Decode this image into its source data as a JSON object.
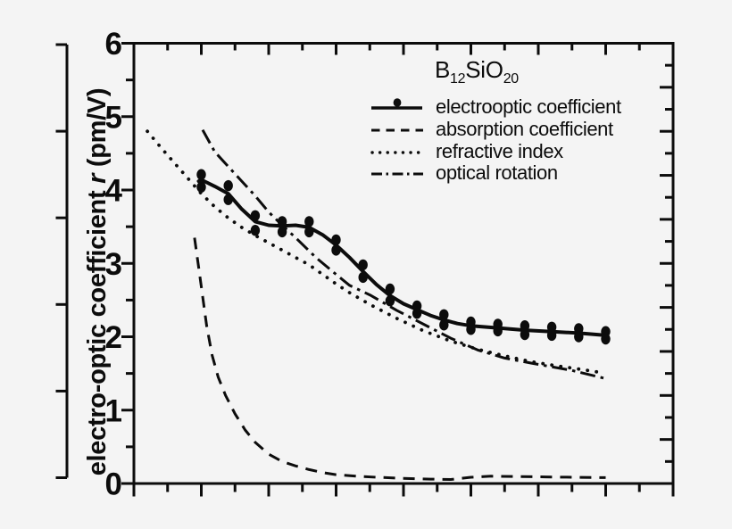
{
  "figure": {
    "background": "#f4f4f4",
    "ink": "#0c0c0c"
  },
  "chart_data": {
    "type": "line",
    "title": "B12SiO20",
    "title_parts": {
      "base1": "B",
      "sub1": "12",
      "base2": "SiO",
      "sub2": "20"
    },
    "ylabel_parts": {
      "prefix": "electro-optic coefficient ",
      "symbol": "r",
      "suffix": " (pm/V)"
    },
    "xlabel": "",
    "ylim": [
      0,
      6
    ],
    "xlim": [
      0,
      8
    ],
    "yticks": [
      0,
      1,
      2,
      3,
      4,
      5,
      6
    ],
    "y_minor_step": 0.5,
    "x_major_step": 1,
    "x_minor_step": 0.5,
    "x_tick_labels_visible": false,
    "right_axis": {
      "divisions": 10,
      "minor_per_major": 2,
      "labels_visible": false
    },
    "outer_left_axis": {
      "tick_count": 6
    },
    "grid": false,
    "legend_position": "top-right-inside",
    "legend": {
      "entries": [
        {
          "label": "electrooptic coefficient",
          "style": "solid-dot"
        },
        {
          "label": "absorption coefficient",
          "style": "dashed"
        },
        {
          "label": "refractive index",
          "style": "dotted"
        },
        {
          "label": "optical rotation",
          "style": "dashdot"
        }
      ]
    },
    "series": [
      {
        "name": "electrooptic coefficient",
        "line_style": "solid",
        "marker": "filled-circle",
        "line": [
          [
            0.96,
            4.12
          ],
          [
            1.0,
            4.14
          ],
          [
            1.2,
            4.05
          ],
          [
            1.4,
            3.95
          ],
          [
            1.6,
            3.74
          ],
          [
            1.8,
            3.57
          ],
          [
            2.0,
            3.52
          ],
          [
            2.2,
            3.51
          ],
          [
            2.4,
            3.52
          ],
          [
            2.6,
            3.49
          ],
          [
            2.8,
            3.39
          ],
          [
            3.0,
            3.25
          ],
          [
            3.2,
            3.08
          ],
          [
            3.4,
            2.89
          ],
          [
            3.6,
            2.71
          ],
          [
            3.8,
            2.56
          ],
          [
            4.0,
            2.45
          ],
          [
            4.2,
            2.37
          ],
          [
            4.4,
            2.29
          ],
          [
            4.6,
            2.23
          ],
          [
            4.8,
            2.18
          ],
          [
            5.0,
            2.15
          ],
          [
            5.4,
            2.12
          ],
          [
            5.8,
            2.09
          ],
          [
            6.2,
            2.07
          ],
          [
            6.6,
            2.05
          ],
          [
            7.0,
            2.02
          ]
        ],
        "scatter": [
          [
            1.0,
            4.21
          ],
          [
            1.0,
            4.04
          ],
          [
            1.4,
            4.06
          ],
          [
            1.4,
            3.87
          ],
          [
            1.8,
            3.65
          ],
          [
            1.8,
            3.45
          ],
          [
            2.2,
            3.57
          ],
          [
            2.2,
            3.43
          ],
          [
            2.6,
            3.57
          ],
          [
            2.6,
            3.43
          ],
          [
            3.0,
            3.32
          ],
          [
            3.0,
            3.18
          ],
          [
            3.4,
            2.98
          ],
          [
            3.4,
            2.81
          ],
          [
            3.8,
            2.65
          ],
          [
            3.8,
            2.49
          ],
          [
            4.2,
            2.42
          ],
          [
            4.2,
            2.32
          ],
          [
            4.6,
            2.3
          ],
          [
            4.6,
            2.16
          ],
          [
            5.0,
            2.2
          ],
          [
            5.0,
            2.1
          ],
          [
            5.4,
            2.17
          ],
          [
            5.4,
            2.08
          ],
          [
            5.8,
            2.15
          ],
          [
            5.8,
            2.03
          ],
          [
            6.2,
            2.13
          ],
          [
            6.2,
            2.02
          ],
          [
            6.6,
            2.11
          ],
          [
            6.6,
            2.0
          ],
          [
            7.0,
            2.07
          ],
          [
            7.0,
            1.97
          ]
        ]
      },
      {
        "name": "absorption coefficient",
        "line_style": "dashed",
        "line": [
          [
            0.9,
            3.35
          ],
          [
            0.96,
            2.95
          ],
          [
            1.02,
            2.55
          ],
          [
            1.08,
            2.15
          ],
          [
            1.16,
            1.75
          ],
          [
            1.25,
            1.45
          ],
          [
            1.36,
            1.2
          ],
          [
            1.5,
            0.95
          ],
          [
            1.65,
            0.73
          ],
          [
            1.8,
            0.56
          ],
          [
            2.0,
            0.4
          ],
          [
            2.2,
            0.3
          ],
          [
            2.4,
            0.24
          ],
          [
            2.6,
            0.19
          ],
          [
            2.8,
            0.15
          ],
          [
            3.0,
            0.12
          ],
          [
            3.3,
            0.1
          ],
          [
            3.6,
            0.085
          ],
          [
            4.0,
            0.07
          ],
          [
            4.4,
            0.06
          ],
          [
            4.7,
            0.055
          ],
          [
            5.0,
            0.085
          ],
          [
            5.3,
            0.1
          ],
          [
            5.7,
            0.095
          ],
          [
            6.1,
            0.09
          ],
          [
            6.5,
            0.085
          ],
          [
            7.0,
            0.08
          ]
        ]
      },
      {
        "name": "refractive index",
        "line_style": "dotted",
        "line": [
          [
            0.2,
            4.8
          ],
          [
            0.4,
            4.58
          ],
          [
            0.6,
            4.37
          ],
          [
            0.8,
            4.16
          ],
          [
            1.0,
            3.95
          ],
          [
            1.2,
            3.77
          ],
          [
            1.4,
            3.62
          ],
          [
            1.6,
            3.49
          ],
          [
            1.8,
            3.38
          ],
          [
            2.0,
            3.28
          ],
          [
            2.2,
            3.18
          ],
          [
            2.4,
            3.08
          ],
          [
            2.6,
            2.98
          ],
          [
            2.8,
            2.85
          ],
          [
            3.0,
            2.72
          ],
          [
            3.2,
            2.6
          ],
          [
            3.5,
            2.44
          ],
          [
            3.9,
            2.25
          ],
          [
            4.3,
            2.08
          ],
          [
            4.7,
            1.94
          ],
          [
            5.1,
            1.83
          ],
          [
            5.5,
            1.74
          ],
          [
            5.9,
            1.66
          ],
          [
            6.3,
            1.6
          ],
          [
            6.6,
            1.56
          ],
          [
            6.95,
            1.51
          ]
        ]
      },
      {
        "name": "optical rotation",
        "line_style": "dashdot",
        "line": [
          [
            1.02,
            4.82
          ],
          [
            1.2,
            4.52
          ],
          [
            1.4,
            4.32
          ],
          [
            1.6,
            4.12
          ],
          [
            1.8,
            3.92
          ],
          [
            2.0,
            3.7
          ],
          [
            2.2,
            3.52
          ],
          [
            2.4,
            3.35
          ],
          [
            2.7,
            3.08
          ],
          [
            3.0,
            2.85
          ],
          [
            3.2,
            2.7
          ],
          [
            3.5,
            2.57
          ],
          [
            3.9,
            2.36
          ],
          [
            4.3,
            2.17
          ],
          [
            4.7,
            1.98
          ],
          [
            5.1,
            1.82
          ],
          [
            5.5,
            1.71
          ],
          [
            5.9,
            1.64
          ],
          [
            6.2,
            1.59
          ],
          [
            6.5,
            1.54
          ],
          [
            7.0,
            1.43
          ]
        ]
      }
    ]
  }
}
